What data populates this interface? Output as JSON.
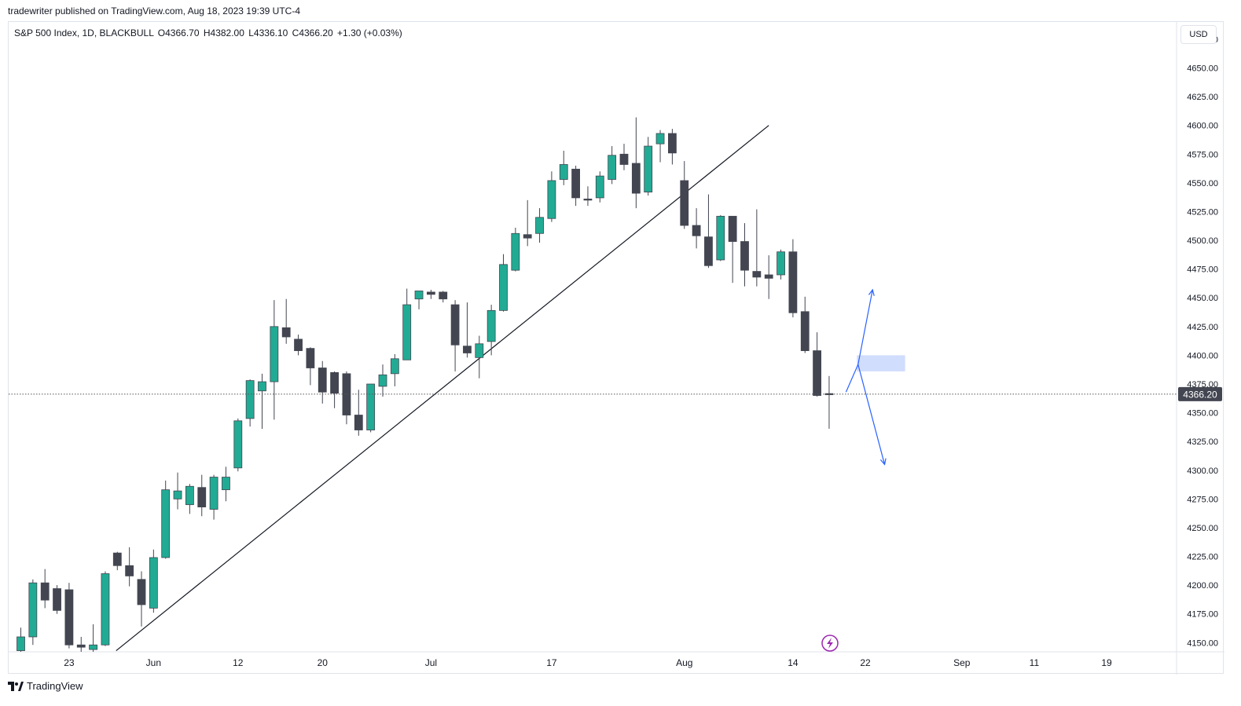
{
  "header": {
    "published_text": "tradewriter published on TradingView.com, Aug 18, 2023 19:39 UTC-4"
  },
  "symbol": {
    "name": "S&P 500 Index, 1D, BLACKBULL",
    "open": "O4366.70",
    "high": "H4382.00",
    "low": "L4336.10",
    "close": "C4366.20",
    "change": "+1.30 (+0.03%)"
  },
  "currency_button": "USD",
  "footer": {
    "brand": "TradingView"
  },
  "colors": {
    "up": "#22ab94",
    "down": "#434651",
    "trendline": "#131722",
    "projection": "#2962ff",
    "zone": "#c5d4fb",
    "price_line": "#555555",
    "price_label_bg": "#434651",
    "alert_icon": "#9c27b0"
  },
  "icons": {
    "alert": "lightning-icon",
    "logo": "tradingview-logo-icon"
  },
  "chart_data": {
    "type": "candlestick",
    "y_axis": {
      "min": 4142,
      "max": 4690,
      "ticks": [
        4150,
        4175,
        4200,
        4225,
        4250,
        4275,
        4300,
        4325,
        4350,
        4375,
        4400,
        4425,
        4450,
        4475,
        4500,
        4525,
        4550,
        4575,
        4600,
        4625,
        4650,
        4675
      ],
      "tick_labels": [
        "4150.00",
        "4175.00",
        "4200.00",
        "4225.00",
        "4250.00",
        "4275.00",
        "4300.00",
        "4325.00",
        "4350.00",
        "4375.00",
        "4400.00",
        "4425.00",
        "4450.00",
        "4475.00",
        "4500.00",
        "4525.00",
        "4550.00",
        "4575.00",
        "4600.00",
        "4625.00",
        "4650.00",
        "4675.00"
      ]
    },
    "x_axis": {
      "labels": [
        {
          "text": "23",
          "index": 4
        },
        {
          "text": "Jun",
          "index": 11
        },
        {
          "text": "12",
          "index": 18
        },
        {
          "text": "20",
          "index": 25
        },
        {
          "text": "Jul",
          "index": 34
        },
        {
          "text": "17",
          "index": 44
        },
        {
          "text": "Aug",
          "index": 55
        },
        {
          "text": "14",
          "index": 64
        },
        {
          "text": "22",
          "index": 70
        },
        {
          "text": "Sep",
          "index": 78
        },
        {
          "text": "11",
          "index": 84
        },
        {
          "text": "19",
          "index": 90
        }
      ]
    },
    "last_price": 4366.2,
    "last_price_label": "4366.20",
    "candles": [
      {
        "o": 4143,
        "h": 4163,
        "l": 4140,
        "c": 4155
      },
      {
        "o": 4155,
        "h": 4205,
        "l": 4148,
        "c": 4202
      },
      {
        "o": 4202,
        "h": 4214,
        "l": 4180,
        "c": 4187
      },
      {
        "o": 4197,
        "h": 4200,
        "l": 4175,
        "c": 4178
      },
      {
        "o": 4196,
        "h": 4202,
        "l": 4145,
        "c": 4148
      },
      {
        "o": 4148,
        "h": 4155,
        "l": 4140,
        "c": 4146
      },
      {
        "o": 4144,
        "h": 4166,
        "l": 4140,
        "c": 4148
      },
      {
        "o": 4148,
        "h": 4212,
        "l": 4147,
        "c": 4210
      },
      {
        "o": 4228,
        "h": 4229,
        "l": 4213,
        "c": 4217
      },
      {
        "o": 4217,
        "h": 4233,
        "l": 4199,
        "c": 4208
      },
      {
        "o": 4205,
        "h": 4212,
        "l": 4164,
        "c": 4183
      },
      {
        "o": 4180,
        "h": 4231,
        "l": 4176,
        "c": 4224
      },
      {
        "o": 4224,
        "h": 4291,
        "l": 4223,
        "c": 4283
      },
      {
        "o": 4275,
        "h": 4298,
        "l": 4266,
        "c": 4282
      },
      {
        "o": 4270,
        "h": 4288,
        "l": 4262,
        "c": 4286
      },
      {
        "o": 4285,
        "h": 4296,
        "l": 4260,
        "c": 4268
      },
      {
        "o": 4266,
        "h": 4296,
        "l": 4257,
        "c": 4294
      },
      {
        "o": 4283,
        "h": 4303,
        "l": 4273,
        "c": 4294
      },
      {
        "o": 4302,
        "h": 4345,
        "l": 4299,
        "c": 4343
      },
      {
        "o": 4345,
        "h": 4379,
        "l": 4338,
        "c": 4378
      },
      {
        "o": 4369,
        "h": 4384,
        "l": 4336,
        "c": 4377
      },
      {
        "o": 4377,
        "h": 4448,
        "l": 4344,
        "c": 4425
      },
      {
        "o": 4424,
        "h": 4449,
        "l": 4410,
        "c": 4416
      },
      {
        "o": 4414,
        "h": 4418,
        "l": 4400,
        "c": 4404
      },
      {
        "o": 4406,
        "h": 4407,
        "l": 4374,
        "c": 4389
      },
      {
        "o": 4389,
        "h": 4395,
        "l": 4358,
        "c": 4368
      },
      {
        "o": 4385,
        "h": 4386,
        "l": 4354,
        "c": 4367
      },
      {
        "o": 4384,
        "h": 4386,
        "l": 4340,
        "c": 4348
      },
      {
        "o": 4348,
        "h": 4370,
        "l": 4330,
        "c": 4335
      },
      {
        "o": 4335,
        "h": 4371,
        "l": 4333,
        "c": 4375
      },
      {
        "o": 4373,
        "h": 4392,
        "l": 4364,
        "c": 4383
      },
      {
        "o": 4384,
        "h": 4401,
        "l": 4373,
        "c": 4397
      },
      {
        "o": 4396,
        "h": 4458,
        "l": 4396,
        "c": 4444
      },
      {
        "o": 4449,
        "h": 4456,
        "l": 4440,
        "c": 4456
      },
      {
        "o": 4455,
        "h": 4457,
        "l": 4449,
        "c": 4453
      },
      {
        "o": 4455,
        "h": 4456,
        "l": 4446,
        "c": 4449
      },
      {
        "o": 4444,
        "h": 4448,
        "l": 4386,
        "c": 4409
      },
      {
        "o": 4408,
        "h": 4446,
        "l": 4398,
        "c": 4402
      },
      {
        "o": 4398,
        "h": 4417,
        "l": 4380,
        "c": 4410
      },
      {
        "o": 4412,
        "h": 4444,
        "l": 4400,
        "c": 4439
      },
      {
        "o": 4439,
        "h": 4488,
        "l": 4438,
        "c": 4479
      },
      {
        "o": 4474,
        "h": 4511,
        "l": 4473,
        "c": 4506
      },
      {
        "o": 4505,
        "h": 4535,
        "l": 4495,
        "c": 4502
      },
      {
        "o": 4506,
        "h": 4528,
        "l": 4498,
        "c": 4520
      },
      {
        "o": 4519,
        "h": 4560,
        "l": 4516,
        "c": 4552
      },
      {
        "o": 4553,
        "h": 4578,
        "l": 4548,
        "c": 4566
      },
      {
        "o": 4562,
        "h": 4565,
        "l": 4530,
        "c": 4537
      },
      {
        "o": 4536,
        "h": 4547,
        "l": 4530,
        "c": 4535
      },
      {
        "o": 4537,
        "h": 4560,
        "l": 4533,
        "c": 4556
      },
      {
        "o": 4553,
        "h": 4582,
        "l": 4549,
        "c": 4574
      },
      {
        "o": 4575,
        "h": 4584,
        "l": 4561,
        "c": 4566
      },
      {
        "o": 4567,
        "h": 4607,
        "l": 4528,
        "c": 4541
      },
      {
        "o": 4542,
        "h": 4590,
        "l": 4539,
        "c": 4582
      },
      {
        "o": 4584,
        "h": 4596,
        "l": 4568,
        "c": 4593
      },
      {
        "o": 4593,
        "h": 4597,
        "l": 4566,
        "c": 4576
      },
      {
        "o": 4552,
        "h": 4569,
        "l": 4510,
        "c": 4513
      },
      {
        "o": 4513,
        "h": 4528,
        "l": 4493,
        "c": 4504
      },
      {
        "o": 4503,
        "h": 4540,
        "l": 4476,
        "c": 4478
      },
      {
        "o": 4483,
        "h": 4522,
        "l": 4482,
        "c": 4521
      },
      {
        "o": 4521,
        "h": 4521,
        "l": 4463,
        "c": 4499
      },
      {
        "o": 4499,
        "h": 4515,
        "l": 4460,
        "c": 4474
      },
      {
        "o": 4473,
        "h": 4527,
        "l": 4460,
        "c": 4468
      },
      {
        "o": 4470,
        "h": 4487,
        "l": 4449,
        "c": 4467
      },
      {
        "o": 4470,
        "h": 4492,
        "l": 4466,
        "c": 4490
      },
      {
        "o": 4490,
        "h": 4501,
        "l": 4433,
        "c": 4437
      },
      {
        "o": 4438,
        "h": 4451,
        "l": 4402,
        "c": 4404
      },
      {
        "o": 4404,
        "h": 4420,
        "l": 4364,
        "c": 4365
      },
      {
        "o": 4366.7,
        "h": 4382,
        "l": 4336.1,
        "c": 4366.2
      }
    ],
    "annotations": {
      "trendline": {
        "from": {
          "index": 7.9,
          "price": 4143
        },
        "to": {
          "index": 62,
          "price": 4600
        }
      },
      "zone": {
        "from_index": 69.3,
        "to_index": 73.3,
        "low": 4386,
        "high": 4400
      },
      "projection_up": [
        {
          "index": 68.4,
          "price": 4368
        },
        {
          "index": 69.4,
          "price": 4392
        },
        {
          "index": 70.6,
          "price": 4457
        }
      ],
      "projection_down": [
        {
          "index": 69.4,
          "price": 4392
        },
        {
          "index": 71.6,
          "price": 4305
        }
      ]
    }
  }
}
